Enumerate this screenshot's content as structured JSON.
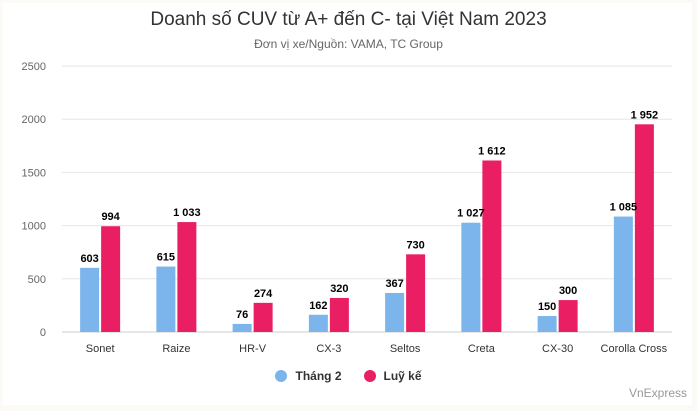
{
  "chart_data": {
    "type": "bar",
    "title": "Doanh số CUV từ A+ đến C- tại Việt Nam 2023",
    "subtitle": "Đơn vị xe/Nguồn: VAMA, TC Group",
    "categories": [
      "Sonet",
      "Raize",
      "HR-V",
      "CX-3",
      "Seltos",
      "Creta",
      "CX-30",
      "Corolla Cross"
    ],
    "series": [
      {
        "name": "Tháng 2",
        "color": "#7cb5ec",
        "values": [
          603,
          615,
          76,
          162,
          367,
          1027,
          150,
          1085
        ],
        "labels": [
          "603",
          "615",
          "76",
          "162",
          "367",
          "1 027",
          "150",
          "1 085"
        ]
      },
      {
        "name": "Luỹ kế",
        "color": "#e91e63",
        "values": [
          994,
          1033,
          274,
          320,
          730,
          1612,
          300,
          1952
        ],
        "labels": [
          "994",
          "1 033",
          "274",
          "320",
          "730",
          "1 612",
          "300",
          "1 952"
        ]
      }
    ],
    "yticks": [
      "0",
      "500",
      "1000",
      "1500",
      "2000",
      "2500"
    ],
    "ylim": [
      0,
      2500
    ],
    "grid": true,
    "legend_position": "bottom-center"
  },
  "credit": "VnExpress"
}
